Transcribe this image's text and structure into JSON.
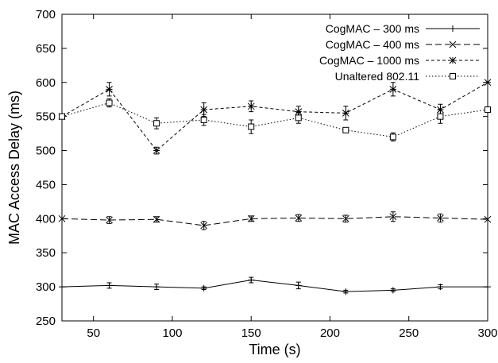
{
  "chart_data": {
    "type": "line",
    "title": "",
    "xlabel": "Time (s)",
    "ylabel": "MAC Access Delay (ms)",
    "xlim": [
      30,
      300
    ],
    "ylim": [
      250,
      700
    ],
    "xticks": [
      50,
      100,
      150,
      200,
      250,
      300
    ],
    "yticks": [
      250,
      300,
      350,
      400,
      450,
      500,
      550,
      600,
      650,
      700
    ],
    "grid": false,
    "legend_position": "top-right",
    "x": [
      30,
      60,
      90,
      120,
      150,
      180,
      210,
      240,
      270,
      300
    ],
    "series": [
      {
        "name": "CogMAC – 300 ms",
        "marker": "plus",
        "dash": "solid",
        "values": [
          300,
          302,
          300,
          298,
          310,
          302,
          293,
          295,
          300,
          300
        ],
        "errors": [
          0,
          4,
          4,
          2,
          4,
          5,
          2,
          2,
          3,
          0
        ]
      },
      {
        "name": "CogMAC – 400 ms",
        "marker": "x",
        "dash": "dashed",
        "values": [
          400,
          398,
          399,
          390,
          400,
          401,
          400,
          403,
          401,
          399
        ],
        "errors": [
          0,
          5,
          4,
          6,
          4,
          5,
          5,
          7,
          6,
          0
        ]
      },
      {
        "name": "CogMAC – 1000 ms",
        "marker": "star",
        "dash": "short-dashed",
        "values": [
          550,
          590,
          500,
          560,
          565,
          557,
          555,
          590,
          560,
          600
        ],
        "errors": [
          0,
          10,
          5,
          10,
          8,
          8,
          10,
          10,
          8,
          0
        ]
      },
      {
        "name": "Unaltered 802.11",
        "marker": "square",
        "dash": "dotted",
        "values": [
          550,
          570,
          540,
          545,
          535,
          548,
          530,
          520,
          550,
          560
        ],
        "errors": [
          0,
          6,
          8,
          8,
          10,
          8,
          0,
          6,
          10,
          0
        ]
      }
    ]
  }
}
